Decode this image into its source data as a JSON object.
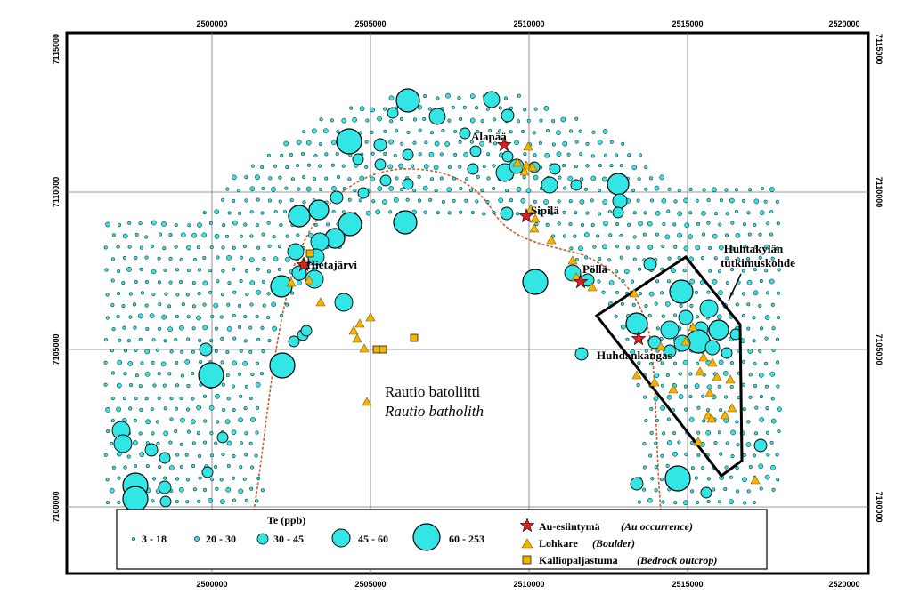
{
  "axes": {
    "x_ticks": [
      "2500000",
      "2505000",
      "2510000",
      "2515000",
      "2520000"
    ],
    "y_ticks": [
      "7115000",
      "7110000",
      "7105000",
      "7100000"
    ]
  },
  "places": {
    "alapaa": "Alapää",
    "sipila": "Sipilä",
    "polla": "Pöllä",
    "hietajarvi": "Hietajärvi",
    "huhdankangas": "Huhdankangas",
    "study_area_line1": "Huhtakylän",
    "study_area_line2": "tutkimuskohde",
    "batholith_fi": "Rautio batoliitti",
    "batholith_en": "Rautio batholith"
  },
  "legend": {
    "title": "Te (ppb)",
    "classes": [
      "3 - 18",
      "20 - 30",
      "30 - 45",
      "45 - 60",
      "60 - 253"
    ],
    "au_label": "Au-esiintymä",
    "au_label_en": "(Au occurrence)",
    "boulder_label": "Lohkare",
    "boulder_label_en": "(Boulder)",
    "outcrop_label": "Kalliopaljastuma",
    "outcrop_label_en": "(Bedrock outcrop)"
  },
  "colors": {
    "sample_fill": "#33e6e6",
    "au_star": "#e02020",
    "boulder": "#f5b400",
    "outcrop": "#f5b400",
    "contact_line": "#c06030"
  }
}
